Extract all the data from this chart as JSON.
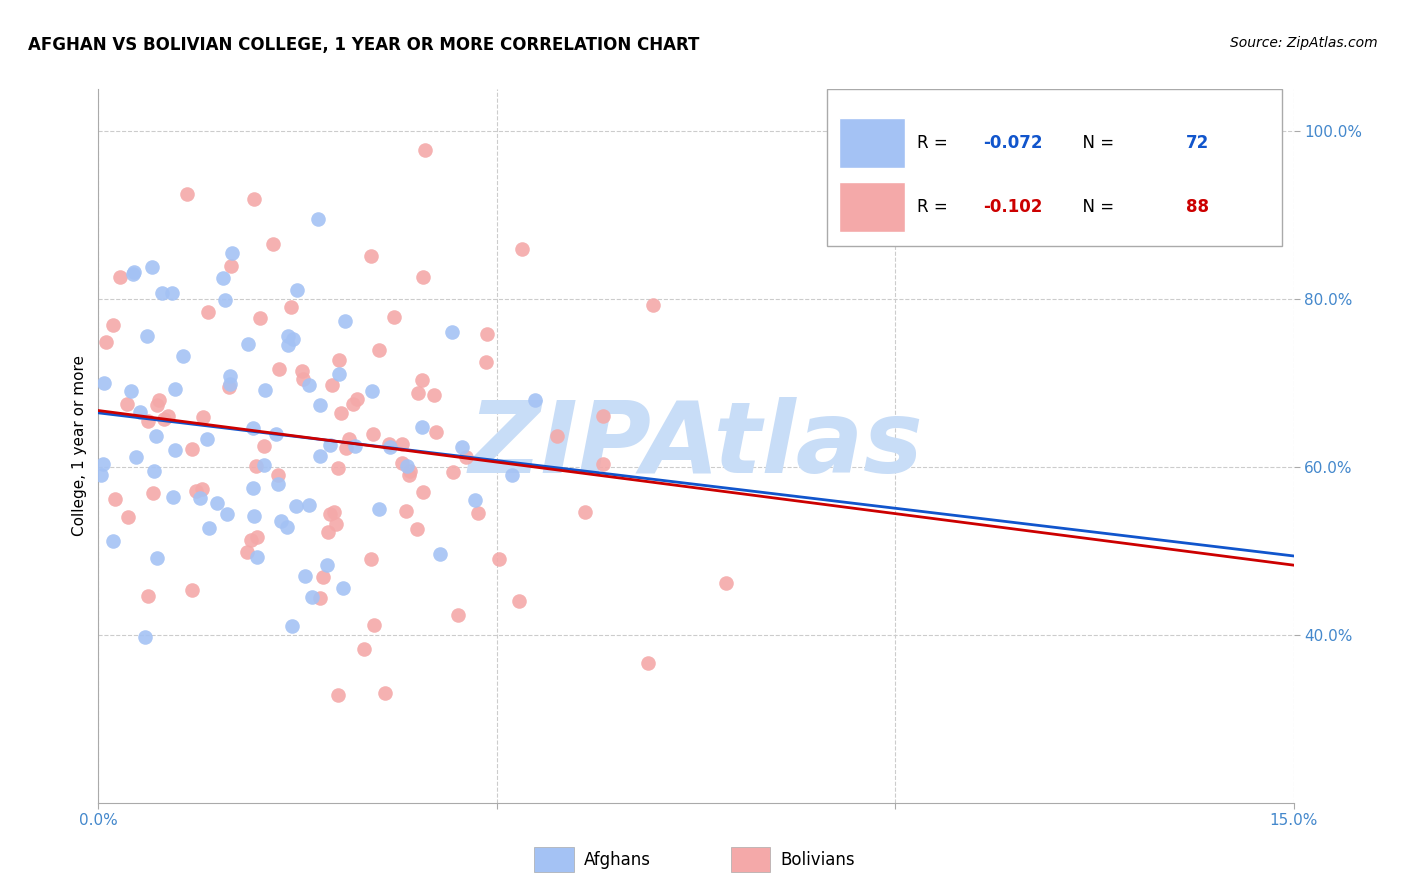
{
  "title": "AFGHAN VS BOLIVIAN COLLEGE, 1 YEAR OR MORE CORRELATION CHART",
  "source": "Source: ZipAtlas.com",
  "ylabel_label": "College, 1 year or more",
  "x_min": 0.0,
  "x_max": 0.15,
  "y_min": 0.2,
  "y_max": 1.05,
  "afghan_color": "#a4c2f4",
  "bolivian_color": "#f4a9a9",
  "afghan_line_color": "#1155cc",
  "bolivian_line_color": "#cc0000",
  "afghan_R": -0.072,
  "afghan_N": 72,
  "bolivian_R": -0.102,
  "bolivian_N": 88,
  "watermark": "ZIPAtlas",
  "watermark_color": "#c8ddf7",
  "background_color": "#ffffff",
  "grid_color": "#cccccc",
  "tick_color": "#4488cc",
  "title_fontsize": 12,
  "source_fontsize": 10,
  "axis_fontsize": 11,
  "legend_fontsize": 12
}
